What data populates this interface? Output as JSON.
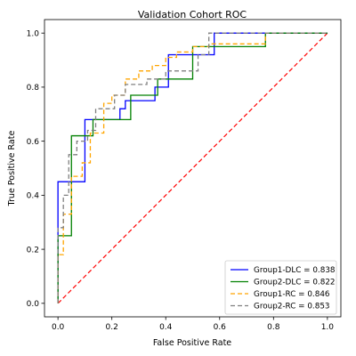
{
  "chart_data": {
    "type": "line",
    "title": "Validation Cohort ROC",
    "xlabel": "False Positive Rate",
    "ylabel": "True Positive Rate",
    "xlim": [
      -0.05,
      1.05
    ],
    "ylim": [
      -0.05,
      1.05
    ],
    "xticks": [
      0.0,
      0.2,
      0.4,
      0.6,
      0.8,
      1.0
    ],
    "yticks": [
      0.0,
      0.2,
      0.4,
      0.6,
      0.8,
      1.0
    ],
    "xtick_labels": [
      "0.0",
      "0.2",
      "0.4",
      "0.6",
      "0.8",
      "1.0"
    ],
    "ytick_labels": [
      "0.0",
      "0.2",
      "0.4",
      "0.6",
      "0.8",
      "1.0"
    ],
    "grid": false,
    "legend_position": "lower-right",
    "reference_line": {
      "color": "#ff0000",
      "style": "dashed",
      "x": [
        0,
        1
      ],
      "y": [
        0,
        1
      ]
    },
    "series": [
      {
        "name": "Group1-DLC = 0.838",
        "color": "#0000ff",
        "style": "solid",
        "x": [
          0,
          0,
          0.05,
          0.1,
          0.1,
          0.23,
          0.23,
          0.25,
          0.25,
          0.36,
          0.36,
          0.41,
          0.41,
          0.46,
          0.46,
          0.58,
          0.58,
          1.0
        ],
        "y": [
          0,
          0.45,
          0.45,
          0.45,
          0.68,
          0.68,
          0.72,
          0.72,
          0.75,
          0.75,
          0.8,
          0.8,
          0.92,
          0.92,
          0.92,
          0.92,
          1.0,
          1.0
        ]
      },
      {
        "name": "Group2-DLC = 0.822",
        "color": "#008000",
        "style": "solid",
        "x": [
          0,
          0,
          0.05,
          0.05,
          0.13,
          0.13,
          0.27,
          0.27,
          0.37,
          0.37,
          0.5,
          0.5,
          0.77,
          0.77,
          1.0
        ],
        "y": [
          0,
          0.25,
          0.25,
          0.62,
          0.62,
          0.68,
          0.68,
          0.77,
          0.77,
          0.83,
          0.83,
          0.95,
          0.95,
          1.0,
          1.0
        ]
      },
      {
        "name": "Group1-RC = 0.846",
        "color": "#ffa500",
        "style": "dashed",
        "x": [
          0,
          0,
          0.02,
          0.02,
          0.05,
          0.05,
          0.09,
          0.09,
          0.12,
          0.12,
          0.17,
          0.17,
          0.2,
          0.2,
          0.25,
          0.25,
          0.3,
          0.3,
          0.35,
          0.35,
          0.4,
          0.4,
          0.44,
          0.44,
          0.5,
          0.5,
          0.56,
          0.56,
          0.77,
          0.77,
          1.0
        ],
        "y": [
          0,
          0.18,
          0.18,
          0.33,
          0.33,
          0.47,
          0.47,
          0.52,
          0.52,
          0.63,
          0.63,
          0.74,
          0.74,
          0.77,
          0.77,
          0.83,
          0.83,
          0.86,
          0.86,
          0.88,
          0.88,
          0.91,
          0.91,
          0.93,
          0.93,
          0.95,
          0.95,
          0.96,
          0.96,
          1.0,
          1.0
        ]
      },
      {
        "name": "Group2-RC = 0.853",
        "color": "#808080",
        "style": "dashed",
        "x": [
          0,
          0,
          0.02,
          0.02,
          0.04,
          0.04,
          0.07,
          0.07,
          0.11,
          0.11,
          0.14,
          0.14,
          0.21,
          0.21,
          0.25,
          0.25,
          0.33,
          0.33,
          0.4,
          0.4,
          0.52,
          0.52,
          0.56,
          0.56,
          1.0
        ],
        "y": [
          0,
          0.28,
          0.28,
          0.4,
          0.4,
          0.55,
          0.55,
          0.6,
          0.6,
          0.64,
          0.64,
          0.72,
          0.72,
          0.77,
          0.77,
          0.81,
          0.81,
          0.83,
          0.83,
          0.86,
          0.86,
          0.92,
          0.92,
          1.0,
          1.0
        ]
      }
    ]
  }
}
